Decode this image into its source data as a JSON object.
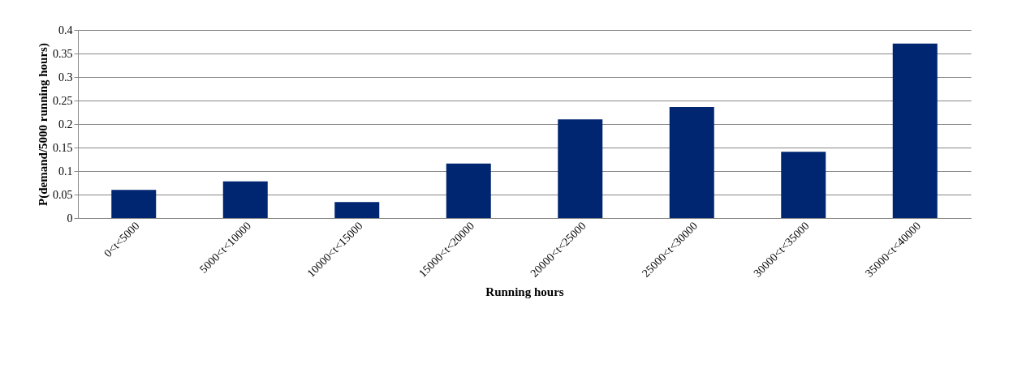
{
  "chart_data": {
    "type": "bar",
    "xlabel": "Running hours",
    "ylabel": "P(demand/5000 running hours)",
    "categories": [
      "0<t<5000",
      "5000<t<10000",
      "10000<t<15000",
      "15000<t<20000",
      "20000<t<25000",
      "25000<t<30000",
      "30000<t<35000",
      "35000<t<40000"
    ],
    "values": [
      0.06,
      0.078,
      0.034,
      0.116,
      0.21,
      0.236,
      0.141,
      0.371
    ],
    "color": "#002672",
    "ylim": [
      0,
      0.4
    ],
    "yticks": [
      0,
      0.05,
      0.1,
      0.15,
      0.2,
      0.25,
      0.3,
      0.35,
      0.4
    ],
    "grid": "y"
  }
}
